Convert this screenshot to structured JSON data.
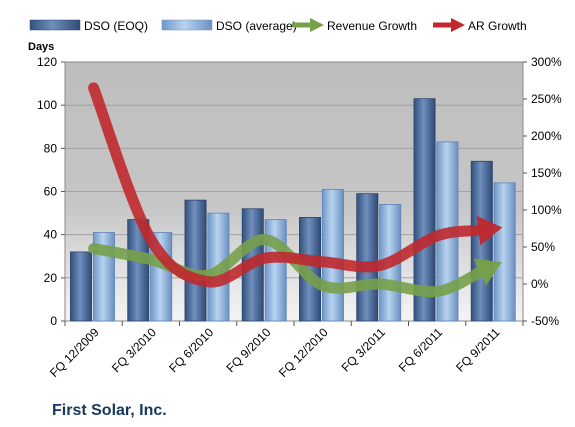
{
  "chart_data": {
    "type": "bar",
    "title": "",
    "footer": "First Solar, Inc.",
    "ylabel_left": "Days",
    "ylim_left": [
      0,
      120
    ],
    "yticks_left": [
      "0",
      "20",
      "40",
      "60",
      "80",
      "100",
      "120"
    ],
    "ylim_right": [
      -50,
      300
    ],
    "yticks_right": [
      "-50%",
      "0%",
      "50%",
      "100%",
      "150%",
      "200%",
      "250%",
      "300%"
    ],
    "categories": [
      "FQ 12/2009",
      "FQ 3/2010",
      "FQ 6/2010",
      "FQ 9/2010",
      "FQ 12/2010",
      "FQ 3/2011",
      "FQ 6/2011",
      "FQ 9/2011"
    ],
    "series": [
      {
        "name": "DSO (EOQ)",
        "kind": "bar",
        "axis": "left",
        "color": "#4f6d99",
        "values": [
          32,
          47,
          56,
          52,
          48,
          59,
          103,
          74
        ]
      },
      {
        "name": "DSO (average)",
        "kind": "bar",
        "axis": "left",
        "color": "#8fb4df",
        "values": [
          41,
          41,
          50,
          47,
          61,
          54,
          83,
          64
        ]
      },
      {
        "name": "Revenue Growth",
        "kind": "arrow",
        "axis": "right",
        "color": "#77a04a",
        "values": [
          48,
          33,
          12,
          60,
          -2,
          0,
          -10,
          25
        ]
      },
      {
        "name": "AR Growth",
        "kind": "arrow",
        "axis": "right",
        "color": "#c0282d",
        "values": [
          265,
          60,
          3,
          35,
          30,
          25,
          65,
          75
        ]
      }
    ],
    "legend_position": "top",
    "grid": true
  }
}
